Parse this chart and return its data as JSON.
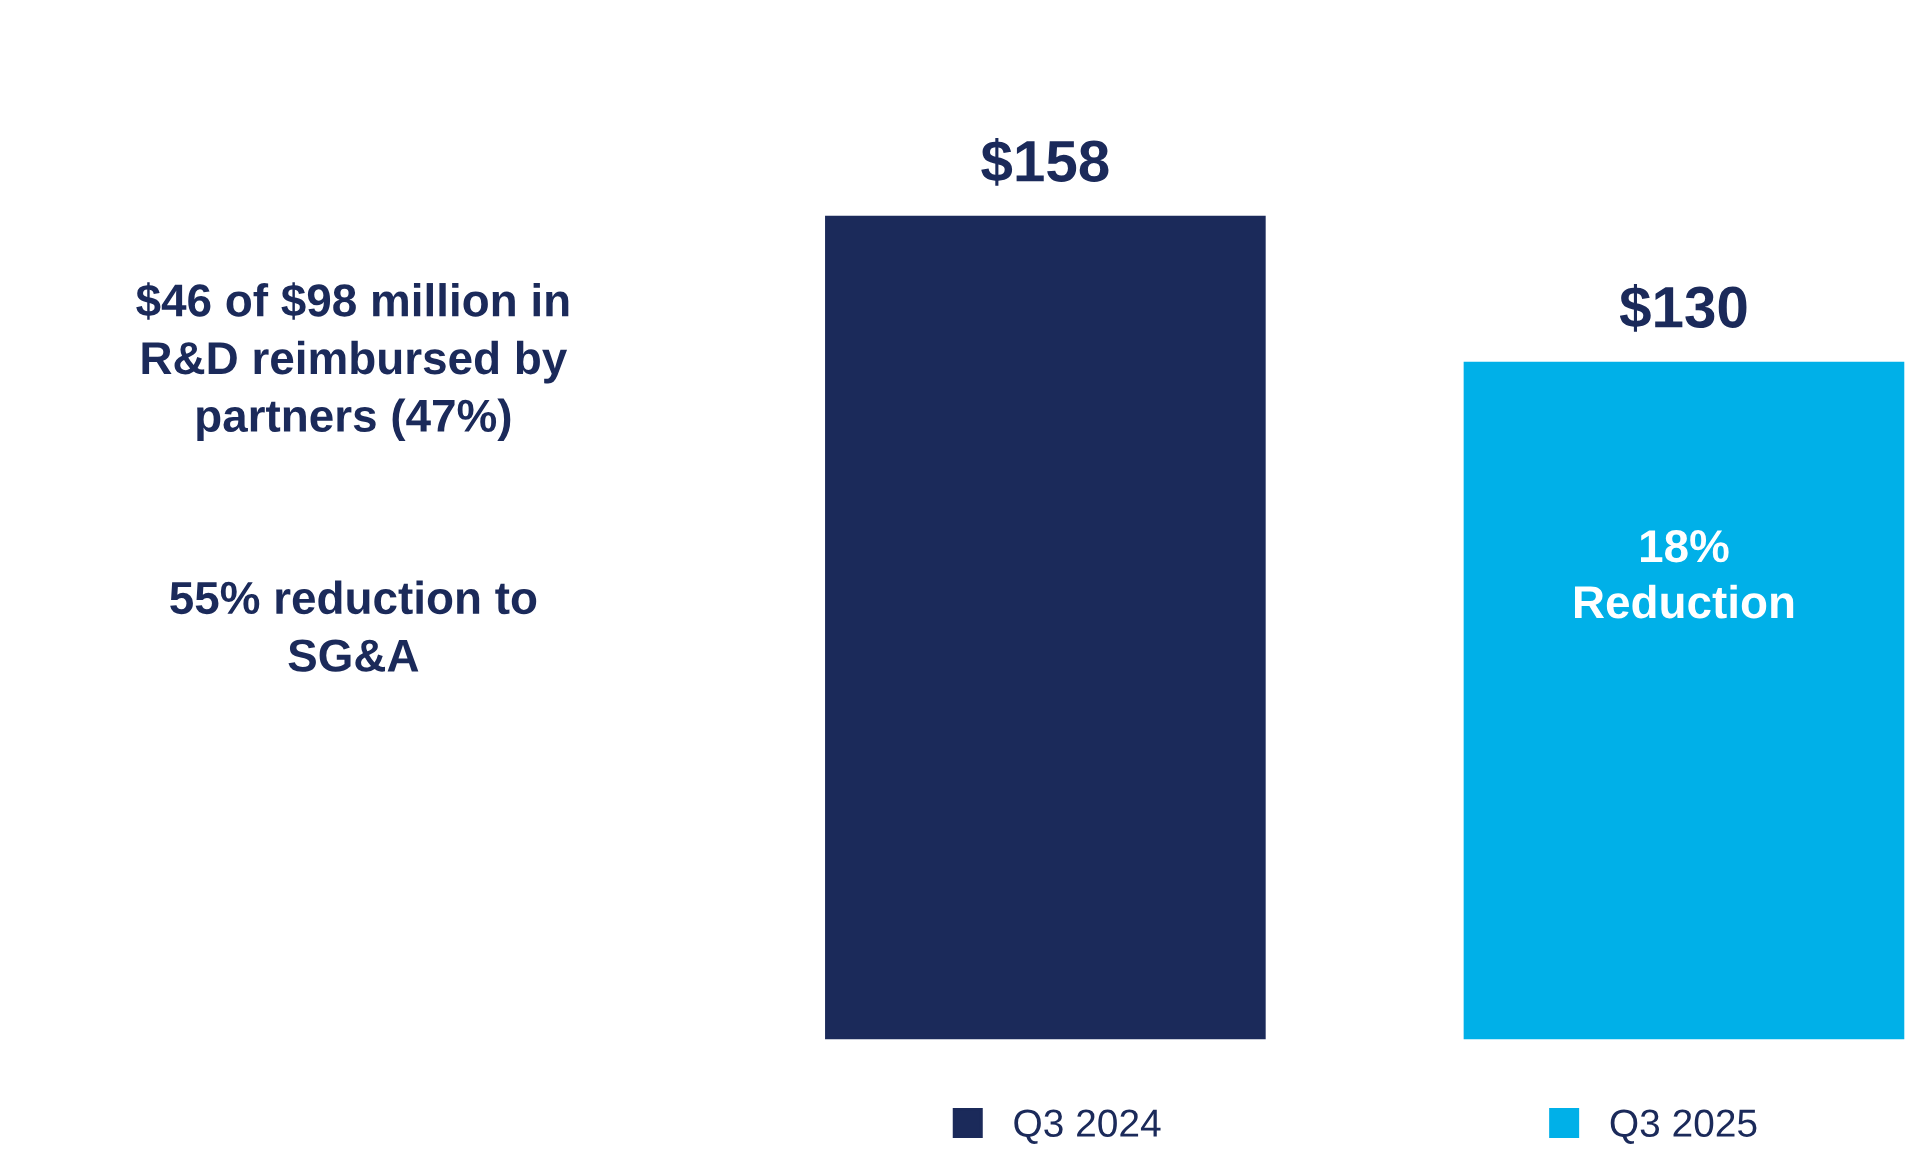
{
  "chart_data": {
    "type": "bar",
    "categories": [
      null
    ],
    "series": [
      {
        "name": "Q3 2024",
        "color": "#1b2a5a",
        "values": [
          158
        ],
        "value_labels": [
          "$158"
        ]
      },
      {
        "name": "Q3 2025",
        "color": "#00b0e8",
        "values": [
          130
        ],
        "value_labels": [
          "$130"
        ]
      }
    ],
    "annotations": [
      "$46 of $98 million in\nR&D reimbursed by\npartners (47%)",
      "55% reduction to\nSG&A",
      "18%\nReduction"
    ],
    "legend": "bottom"
  }
}
